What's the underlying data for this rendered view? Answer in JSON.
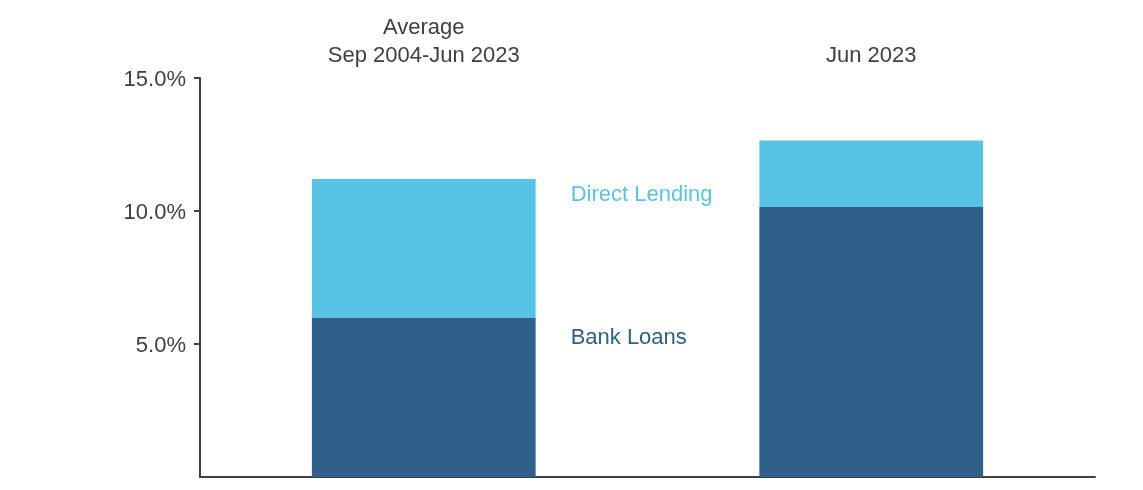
{
  "chart_data": {
    "type": "bar",
    "stacked": true,
    "categories": [
      "Average\nSep 2004-Jun 2023",
      "Jun 2023"
    ],
    "series": [
      {
        "name": "Bank Loans",
        "color": "#2e6089",
        "values": [
          6.0,
          10.15
        ]
      },
      {
        "name": "Direct Lending",
        "color": "#57c4e5",
        "values": [
          5.2,
          2.5
        ]
      }
    ],
    "ylim": [
      0,
      15
    ],
    "yticks": [
      {
        "value": 5,
        "label": "5.0%"
      },
      {
        "value": 10,
        "label": "10.0%"
      },
      {
        "value": 15,
        "label": "15.0%"
      }
    ],
    "grid": false
  }
}
